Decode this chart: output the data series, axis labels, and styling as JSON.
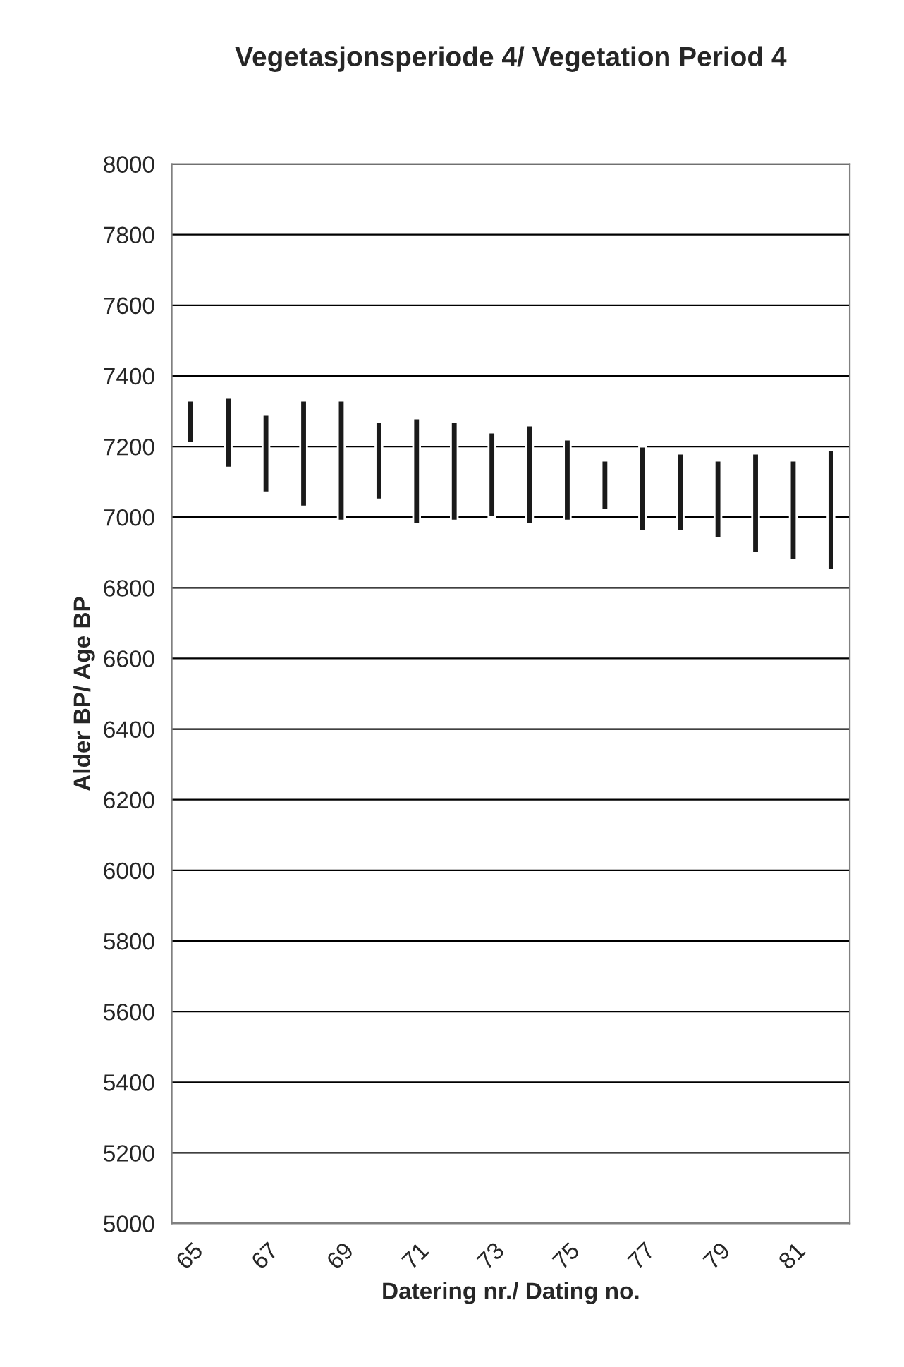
{
  "chart_data": {
    "type": "bar",
    "title": "Vegetasjonsperiode 4/ Vegetation Period 4",
    "xlabel": "Datering nr./ Dating no.",
    "ylabel": "Alder BP/ Age BP",
    "categories": [
      "65",
      null,
      "67",
      null,
      "69",
      null,
      "71",
      null,
      "73",
      null,
      "75",
      null,
      "77",
      null,
      "79",
      null,
      "81",
      null
    ],
    "base": [
      7210,
      7140,
      7070,
      7030,
      6990,
      7050,
      6980,
      6990,
      7000,
      6980,
      6990,
      7020,
      6960,
      6960,
      6940,
      6900,
      6880,
      6850
    ],
    "values": [
      120,
      200,
      220,
      300,
      340,
      220,
      300,
      280,
      240,
      280,
      230,
      140,
      240,
      220,
      220,
      280,
      280,
      340
    ],
    "color": "#1a1a1a",
    "ylim": [
      5000,
      8000
    ],
    "yticks": [
      5000,
      5200,
      5400,
      5600,
      5800,
      6000,
      6200,
      6400,
      6600,
      6800,
      7000,
      7200,
      7400,
      7600,
      7800,
      8000
    ],
    "grid": "y",
    "legend": false
  }
}
